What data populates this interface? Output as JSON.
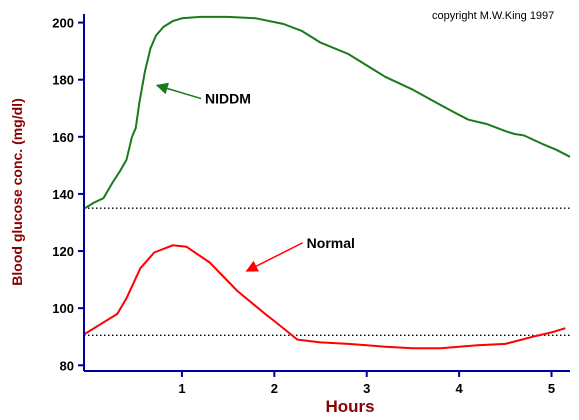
{
  "chart_data": {
    "type": "line",
    "xlabel": "Hours",
    "ylabel": "Blood glucose conc. (mg/dl)",
    "copyright": "copyright M.W.King 1997",
    "xlim": [
      -0.06,
      5.2
    ],
    "ylim": [
      78,
      203
    ],
    "x_ticks": [
      1,
      2,
      3,
      4,
      5
    ],
    "y_ticks": [
      80,
      100,
      120,
      140,
      160,
      180,
      200
    ],
    "reference_lines": [
      {
        "y": 135,
        "style": "dotted",
        "color": "#000000"
      },
      {
        "y": 90.5,
        "style": "dotted",
        "color": "#000000"
      }
    ],
    "series": [
      {
        "name": "NIDDM",
        "color": "#1a7a1a",
        "x": [
          -0.05,
          0.05,
          0.15,
          0.25,
          0.33,
          0.4,
          0.46,
          0.5,
          0.54,
          0.6,
          0.66,
          0.72,
          0.8,
          0.9,
          1.0,
          1.2,
          1.5,
          1.8,
          2.1,
          2.3,
          2.5,
          2.8,
          3.0,
          3.2,
          3.5,
          3.75,
          3.95,
          4.1,
          4.3,
          4.5,
          4.6,
          4.7,
          4.9,
          5.05,
          5.2
        ],
        "values": [
          135,
          137,
          138.5,
          144,
          148,
          152,
          160,
          163,
          172,
          183,
          191,
          195.5,
          198.5,
          200.5,
          201.5,
          202,
          202,
          201.5,
          199.5,
          197,
          193,
          189,
          185,
          181,
          176.5,
          172,
          168.5,
          166,
          164.5,
          162,
          161,
          160.5,
          157.5,
          155.5,
          153
        ]
      },
      {
        "name": "Normal",
        "color": "#ff0000",
        "x": [
          -0.05,
          0.1,
          0.3,
          0.4,
          0.55,
          0.7,
          0.9,
          1.05,
          1.3,
          1.6,
          1.9,
          2.0,
          2.25,
          2.5,
          2.8,
          3.0,
          3.2,
          3.5,
          3.8,
          4.0,
          4.2,
          4.5,
          4.8,
          5.0,
          5.15
        ],
        "values": [
          91,
          94,
          98,
          103.5,
          114,
          119.5,
          122,
          121.5,
          116,
          106,
          98,
          95.5,
          89,
          88,
          87.5,
          87,
          86.5,
          86,
          86,
          86.5,
          87,
          87.5,
          90,
          91.5,
          93
        ]
      }
    ],
    "annotations": [
      {
        "text": "NIDDM",
        "series": "NIDDM",
        "label_x": 1.25,
        "label_y": 172,
        "arrow_to_x": 0.73,
        "arrow_to_y": 178
      },
      {
        "text": "Normal",
        "series": "Normal",
        "label_x": 2.35,
        "label_y": 121.5,
        "arrow_to_x": 1.7,
        "arrow_to_y": 113
      }
    ]
  }
}
